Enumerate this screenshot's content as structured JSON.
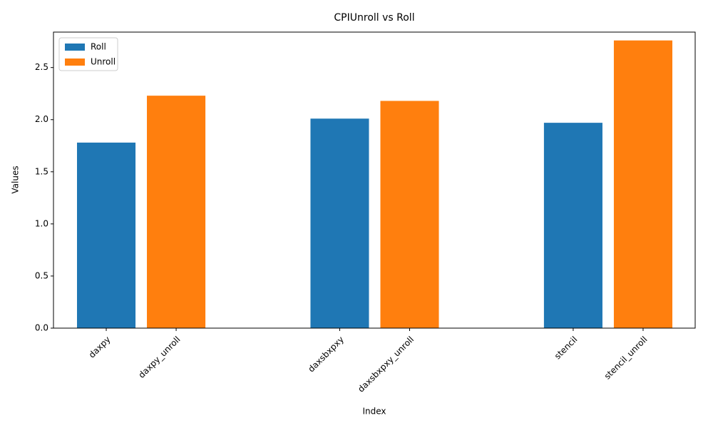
{
  "chart_data": {
    "type": "bar",
    "title": "CPIUnroll vs Roll",
    "x_label": "Index",
    "y_label": "Values",
    "categories": [
      "daxpy",
      "daxpy_unroll",
      "daxsbxpxy",
      "daxsbxpxy_unroll",
      "stencil",
      "stencil_unroll"
    ],
    "series": [
      {
        "name": "Roll",
        "color": "#1f77b4",
        "values": [
          1.78,
          null,
          2.01,
          null,
          1.97,
          null
        ]
      },
      {
        "name": "Unroll",
        "color": "#ff7f0e",
        "values": [
          null,
          2.23,
          null,
          2.18,
          null,
          2.76
        ]
      }
    ],
    "ylim": [
      0,
      2.84
    ],
    "yticks": [
      {
        "value": 0,
        "label": "0.0"
      },
      0.5,
      {
        "value": 1,
        "label": "1.0"
      },
      1.5,
      {
        "value": 2,
        "label": "2.0"
      },
      2.5
    ],
    "legend": "upper left"
  }
}
